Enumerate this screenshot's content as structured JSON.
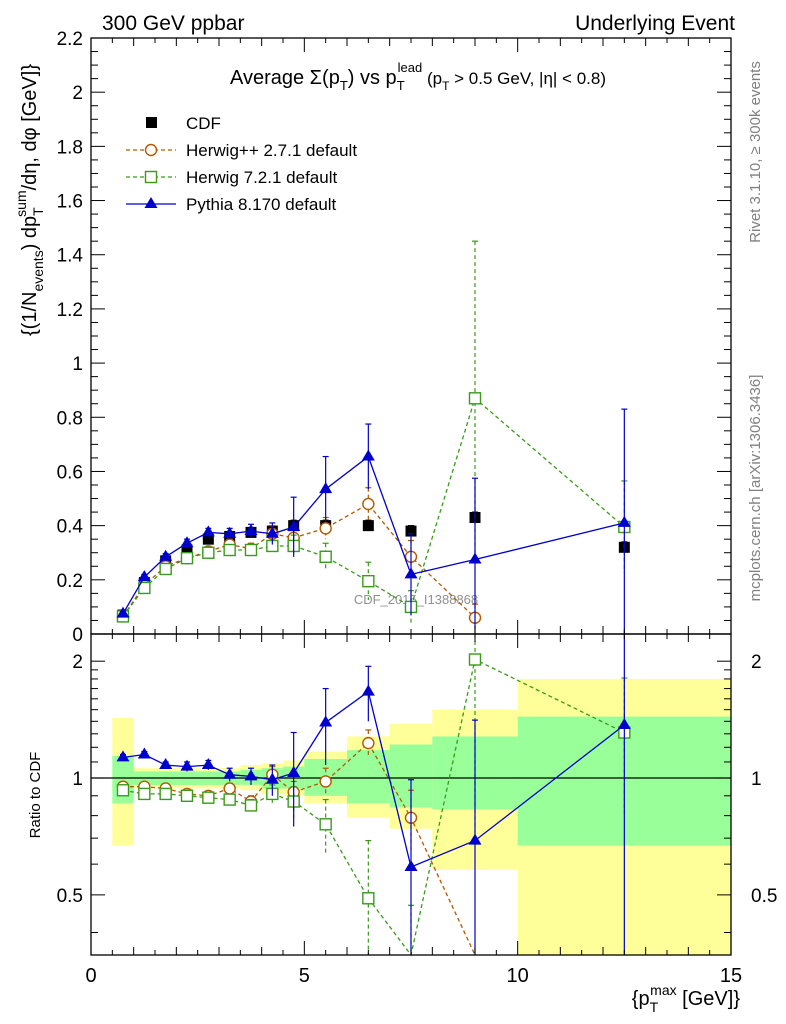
{
  "header": {
    "energy": "300 GeV ppbar",
    "process": "Underlying Event"
  },
  "side_labels": {
    "rivet": "Rivet 3.1.10, ≥ 300k events",
    "mcplots": "mcplots.cern.ch [arXiv:1306.3436]"
  },
  "watermark": "CDF_2015_I1388868",
  "chart_data": [
    {
      "type": "line",
      "title": "Average Σ(p_T) vs p_T^lead (p_T > 0.5 GeV, |η| < 0.8)",
      "title_parts": {
        "pre": "Average ",
        "sigma": "Σ(p",
        "sub1": "T",
        "mid": ") vs p",
        "sub2": "T",
        "sup2": "lead",
        "post": " (p",
        "sub3": "T",
        "tail": " > 0.5 GeV, |η| < 0.8)"
      },
      "ylabel": "{(1/N_events) dp_T^sum/dη, dφ [GeV]}",
      "ylabel_parts": {
        "a": "{(1/N",
        "sub_a": "events",
        "b": ") dp",
        "sub_b": "T",
        "sup_b": "sum",
        "c": "/dη, dφ [GeV]}"
      },
      "xlim": [
        0,
        15
      ],
      "ylim": [
        0,
        2.2
      ],
      "y_ticks": [
        "0",
        "0.2",
        "0.4",
        "0.6",
        "0.8",
        "1",
        "1.2",
        "1.4",
        "1.6",
        "1.8",
        "2",
        "2.2"
      ],
      "legend_position": "top-left",
      "series": [
        {
          "name": "CDF",
          "color": "#000000",
          "marker": "filled-square",
          "x": [
            0.75,
            1.25,
            1.75,
            2.25,
            2.75,
            3.25,
            3.75,
            4.25,
            4.75,
            5.5,
            6.5,
            7.5,
            9.0,
            12.5
          ],
          "y": [
            0.07,
            0.19,
            0.27,
            0.31,
            0.35,
            0.36,
            0.375,
            0.38,
            0.4,
            0.4,
            0.4,
            0.38,
            0.43,
            0.32
          ],
          "yerr": [
            0.005,
            0.008,
            0.01,
            0.01,
            0.012,
            0.015,
            0.018,
            0.02,
            0.02,
            0.02,
            0.02,
            0.02,
            0.02,
            0.02
          ]
        },
        {
          "name": "Herwig++ 2.7.1 default",
          "color": "#b35900",
          "marker": "open-circle",
          "dash": "4,3",
          "x": [
            0.75,
            1.25,
            1.75,
            2.25,
            2.75,
            3.25,
            3.75,
            4.25,
            4.75,
            5.5,
            6.5,
            7.5,
            9.0
          ],
          "y": [
            0.065,
            0.18,
            0.25,
            0.28,
            0.305,
            0.33,
            0.315,
            0.37,
            0.355,
            0.39,
            0.48,
            0.285,
            0.06
          ],
          "yerr": [
            0.005,
            0.01,
            0.01,
            0.012,
            0.015,
            0.02,
            0.02,
            0.03,
            0.03,
            0.04,
            0.06,
            0.06,
            0.05
          ]
        },
        {
          "name": "Herwig 7.2.1 default",
          "color": "#3a9a1a",
          "marker": "open-square",
          "dash": "4,3",
          "x": [
            0.75,
            1.25,
            1.75,
            2.25,
            2.75,
            3.25,
            3.75,
            4.25,
            4.75,
            5.5,
            6.5,
            7.5,
            9.0,
            12.5
          ],
          "y": [
            0.065,
            0.17,
            0.24,
            0.28,
            0.3,
            0.31,
            0.31,
            0.325,
            0.325,
            0.285,
            0.195,
            0.1,
            0.87,
            0.395
          ],
          "yerr": [
            0.005,
            0.01,
            0.01,
            0.012,
            0.015,
            0.015,
            0.02,
            0.02,
            0.04,
            0.05,
            0.07,
            0.06,
            0.58,
            0.17
          ]
        },
        {
          "name": "Pythia 8.170 default",
          "color": "#0000cc",
          "marker": "filled-triangle",
          "x": [
            0.75,
            1.25,
            1.75,
            2.25,
            2.75,
            3.25,
            3.75,
            4.25,
            4.75,
            5.5,
            6.5,
            7.5,
            9.0,
            12.5
          ],
          "y": [
            0.075,
            0.21,
            0.285,
            0.335,
            0.375,
            0.37,
            0.38,
            0.37,
            0.395,
            0.535,
            0.655,
            0.22,
            0.275,
            0.41
          ],
          "yerr": [
            0.005,
            0.01,
            0.012,
            0.015,
            0.015,
            0.02,
            0.025,
            0.04,
            0.11,
            0.12,
            0.12,
            0.15,
            0.3,
            0.42
          ]
        }
      ]
    },
    {
      "type": "line",
      "title": "",
      "xlabel": "{p_T^max [GeV]}",
      "xlabel_parts": {
        "a": "{p",
        "sub": "T",
        "sup": "max",
        "b": " [GeV]}"
      },
      "ylabel": "Ratio to CDF",
      "xlim": [
        0,
        15
      ],
      "ylim": [
        0.35,
        2.35
      ],
      "x_ticks": [
        "0",
        "5",
        "10",
        "15"
      ],
      "y_ticks": [
        "0.5",
        "1",
        "2"
      ],
      "bands": {
        "edges": [
          0.5,
          1.0,
          1.5,
          2.0,
          2.5,
          3.0,
          3.5,
          4.0,
          4.5,
          5.0,
          6.0,
          7.0,
          8.0,
          10.0,
          15.0
        ],
        "green_lo": [
          0.86,
          0.96,
          0.96,
          0.96,
          0.96,
          0.96,
          0.96,
          0.94,
          0.94,
          0.9,
          0.86,
          0.84,
          0.83,
          0.67
        ],
        "green_hi": [
          1.14,
          1.04,
          1.04,
          1.04,
          1.04,
          1.04,
          1.05,
          1.06,
          1.07,
          1.12,
          1.18,
          1.22,
          1.28,
          1.44
        ],
        "yellow_lo": [
          0.67,
          0.94,
          0.94,
          0.94,
          0.94,
          0.94,
          0.93,
          0.91,
          0.9,
          0.86,
          0.79,
          0.74,
          0.58,
          0.35
        ],
        "yellow_hi": [
          1.43,
          1.06,
          1.06,
          1.06,
          1.06,
          1.06,
          1.08,
          1.09,
          1.11,
          1.17,
          1.28,
          1.38,
          1.5,
          1.8
        ]
      },
      "series": [
        {
          "name": "Herwig++ 2.7.1 default",
          "color": "#b35900",
          "marker": "open-circle",
          "dash": "4,3",
          "x": [
            0.75,
            1.25,
            1.75,
            2.25,
            2.75,
            3.25,
            3.75,
            4.25,
            4.75,
            5.5,
            6.5,
            7.5,
            9.0
          ],
          "y": [
            0.95,
            0.95,
            0.94,
            0.91,
            0.9,
            0.94,
            0.87,
            1.02,
            0.92,
            0.98,
            1.23,
            0.79,
            0.14
          ],
          "yerr": [
            0.02,
            0.02,
            0.02,
            0.02,
            0.02,
            0.03,
            0.03,
            0.05,
            0.06,
            0.08,
            0.1,
            0.14,
            0.1
          ]
        },
        {
          "name": "Herwig 7.2.1 default",
          "color": "#3a9a1a",
          "marker": "open-square",
          "dash": "4,3",
          "x": [
            0.75,
            1.25,
            1.75,
            2.25,
            2.75,
            3.25,
            3.75,
            4.25,
            4.75,
            5.5,
            6.5,
            7.5,
            9.0,
            12.5
          ],
          "y": [
            0.93,
            0.91,
            0.91,
            0.9,
            0.89,
            0.88,
            0.85,
            0.91,
            0.87,
            0.76,
            0.49,
            0.27,
            2.02,
            1.31
          ],
          "yerr": [
            0.02,
            0.02,
            0.02,
            0.02,
            0.02,
            0.02,
            0.03,
            0.05,
            0.08,
            0.12,
            0.2,
            0.2,
            1.3,
            0.5
          ]
        },
        {
          "name": "Pythia 8.170 default",
          "color": "#0000cc",
          "marker": "filled-triangle",
          "x": [
            0.75,
            1.25,
            1.75,
            2.25,
            2.75,
            3.25,
            3.75,
            4.25,
            4.75,
            5.5,
            6.5,
            7.5,
            9.0,
            12.5
          ],
          "y": [
            1.13,
            1.15,
            1.08,
            1.07,
            1.08,
            1.02,
            1.01,
            0.99,
            1.03,
            1.39,
            1.67,
            0.59,
            0.69,
            1.37
          ],
          "yerr": [
            0.02,
            0.02,
            0.02,
            0.03,
            0.03,
            0.04,
            0.05,
            0.09,
            0.28,
            0.31,
            0.27,
            0.4,
            0.72,
            1.3
          ]
        }
      ]
    }
  ]
}
